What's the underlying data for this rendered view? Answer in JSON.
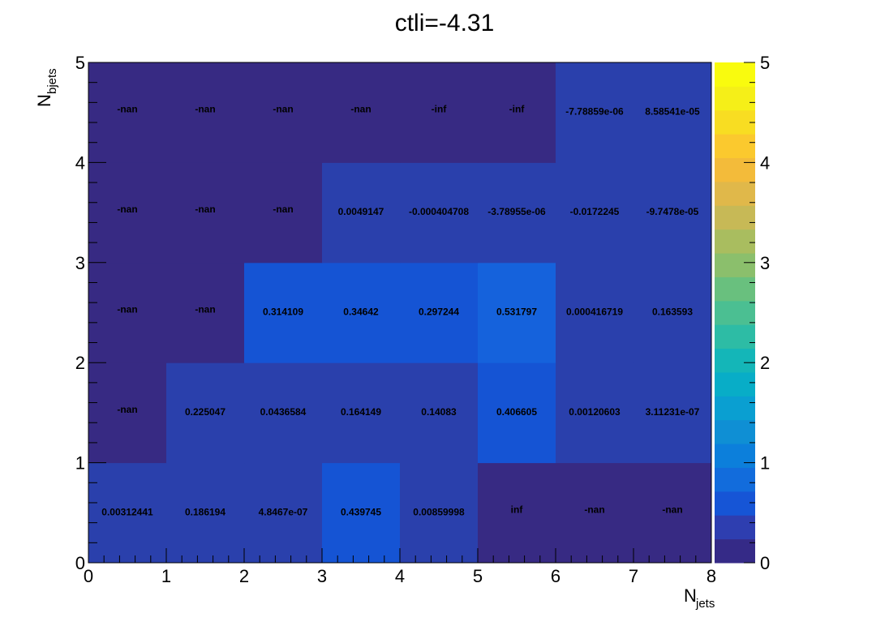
{
  "chart_data": {
    "type": "heatmap",
    "title": "ctli=-4.31",
    "xlabel": {
      "main": "N",
      "sub": "jets"
    },
    "ylabel": {
      "main": "N",
      "sub": "bjets"
    },
    "xlim": [
      0,
      8
    ],
    "ylim": [
      0,
      5
    ],
    "zlim": [
      0,
      5
    ],
    "x_ticks": [
      "0",
      "1",
      "2",
      "3",
      "4",
      "5",
      "6",
      "7",
      "8"
    ],
    "y_ticks": [
      "0",
      "1",
      "2",
      "3",
      "4",
      "5"
    ],
    "z_ticks": [
      "0",
      "1",
      "2",
      "3",
      "4",
      "5"
    ],
    "palette": [
      "#352a87",
      "#2e3eb0",
      "#1655d6",
      "#126cdc",
      "#0c7fdb",
      "#0f8fd4",
      "#0a9fd1",
      "#08adc7",
      "#14b6b8",
      "#2dbca5",
      "#4bbf92",
      "#69c07e",
      "#8bbf6c",
      "#a9bd5f",
      "#c7b956",
      "#e0b84a",
      "#f3bb3a",
      "#fbc92e",
      "#f8dd22",
      "#f5ef18",
      "#f9fb0e"
    ],
    "cell_colors": {
      "dark": "#372a83",
      "base": "#2a40ac",
      "mid": "#1554d4",
      "bright": "#1562dc"
    },
    "rows": [
      {
        "y": 0,
        "labels": [
          "0.00312441",
          "0.186194",
          "4.8467e-07",
          "0.439745",
          "0.00859998",
          "inf",
          "-nan",
          "-nan"
        ],
        "values": [
          0.00312441,
          0.186194,
          4.8467e-07,
          0.439745,
          0.00859998,
          null,
          null,
          null
        ],
        "colors": [
          "base",
          "base",
          "base",
          "mid",
          "base",
          "dark",
          "dark",
          "dark"
        ]
      },
      {
        "y": 1,
        "labels": [
          "-nan",
          "0.225047",
          "0.0436584",
          "0.164149",
          "0.14083",
          "0.406605",
          "0.00120603",
          "3.11231e-07"
        ],
        "values": [
          null,
          0.225047,
          0.0436584,
          0.164149,
          0.14083,
          0.406605,
          0.00120603,
          3.11231e-07
        ],
        "colors": [
          "dark",
          "base",
          "base",
          "base",
          "base",
          "mid",
          "base",
          "base"
        ]
      },
      {
        "y": 2,
        "labels": [
          "-nan",
          "-nan",
          "0.314109",
          "0.34642",
          "0.297244",
          "0.531797",
          "0.000416719",
          "0.163593"
        ],
        "values": [
          null,
          null,
          0.314109,
          0.34642,
          0.297244,
          0.531797,
          0.000416719,
          0.163593
        ],
        "colors": [
          "dark",
          "dark",
          "mid",
          "mid",
          "mid",
          "bright",
          "base",
          "base"
        ]
      },
      {
        "y": 3,
        "labels": [
          "-nan",
          "-nan",
          "-nan",
          "0.0049147",
          "-0.000404708",
          "-3.78955e-06",
          "-0.0172245",
          "-9.7478e-05"
        ],
        "values": [
          null,
          null,
          null,
          0.0049147,
          -0.000404708,
          -3.78955e-06,
          -0.0172245,
          -9.7478e-05
        ],
        "colors": [
          "dark",
          "dark",
          "dark",
          "base",
          "base",
          "base",
          "base",
          "base"
        ]
      },
      {
        "y": 4,
        "labels": [
          "-nan",
          "-nan",
          "-nan",
          "-nan",
          "-inf",
          "-inf",
          "-7.78859e-06",
          "8.58541e-05"
        ],
        "values": [
          null,
          null,
          null,
          null,
          null,
          null,
          -7.78859e-06,
          8.58541e-05
        ],
        "colors": [
          "dark",
          "dark",
          "dark",
          "dark",
          "dark",
          "dark",
          "base",
          "base"
        ]
      }
    ]
  }
}
